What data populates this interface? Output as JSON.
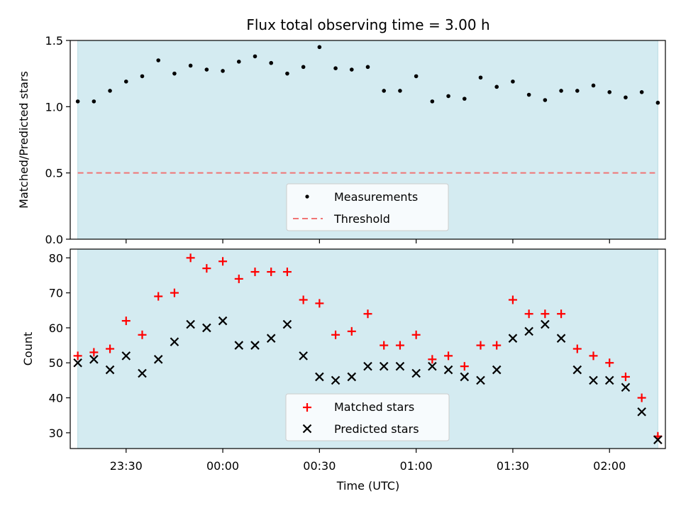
{
  "chart_data": [
    {
      "type": "scatter",
      "title": "Flux total observing time = 3.00 h",
      "ylabel": "Matched/Predicted stars",
      "xlabel": "",
      "ylim": [
        0.0,
        1.5
      ],
      "yticks": [
        "0.0",
        "0.5",
        "1.0",
        "1.5"
      ],
      "shaded_background_color": "#d4ebf1",
      "legend_placement": "lower-center",
      "threshold": 0.5,
      "series": [
        {
          "name": "Measurements",
          "marker": "dot",
          "color": "#000000",
          "values": [
            1.04,
            1.04,
            1.12,
            1.19,
            1.23,
            1.35,
            1.25,
            1.31,
            1.28,
            1.27,
            1.34,
            1.38,
            1.33,
            1.25,
            1.3,
            1.45,
            1.29,
            1.28,
            1.3,
            1.12,
            1.12,
            1.23,
            1.04,
            1.08,
            1.06,
            1.22,
            1.15,
            1.19,
            1.09,
            1.05,
            1.12,
            1.12,
            1.16,
            1.11,
            1.07,
            1.11,
            1.03
          ]
        },
        {
          "name": "Threshold",
          "marker": "dashed-line",
          "color": "#f07575",
          "values": [
            0.5,
            0.5
          ]
        }
      ]
    },
    {
      "type": "scatter",
      "title": "",
      "ylabel": "Count",
      "xlabel": "Time (UTC)",
      "ylim": [
        25.5,
        82.5
      ],
      "yticks": [
        "30",
        "40",
        "50",
        "60",
        "70",
        "80"
      ],
      "xtick_labels": [
        "23:30",
        "00:00",
        "00:30",
        "01:00",
        "01:30",
        "02:00"
      ],
      "shaded_background_color": "#d4ebf1",
      "legend_placement": "lower-center",
      "series": [
        {
          "name": "Matched stars",
          "marker": "plus",
          "color": "#ff0000",
          "values": [
            52,
            53,
            54,
            62,
            58,
            69,
            70,
            80,
            77,
            79,
            74,
            76,
            76,
            76,
            68,
            67,
            58,
            59,
            64,
            55,
            55,
            58,
            51,
            52,
            49,
            55,
            55,
            68,
            64,
            64,
            64,
            54,
            52,
            50,
            46,
            40,
            29
          ]
        },
        {
          "name": "Predicted stars",
          "marker": "x",
          "color": "#000000",
          "values": [
            50,
            51,
            48,
            52,
            47,
            51,
            56,
            61,
            60,
            62,
            55,
            55,
            57,
            61,
            52,
            46,
            45,
            46,
            49,
            49,
            49,
            47,
            49,
            48,
            46,
            45,
            48,
            57,
            59,
            61,
            57,
            48,
            45,
            45,
            43,
            36,
            28
          ]
        }
      ]
    }
  ],
  "time_axis": {
    "start": "23:15",
    "step_minutes": 5,
    "count": 37
  }
}
